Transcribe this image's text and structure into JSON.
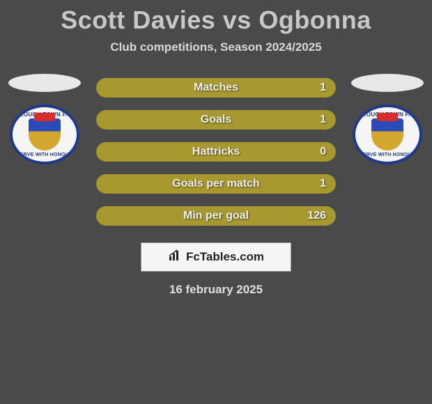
{
  "title": "Scott Davies vs Ogbonna",
  "subtitle": "Club competitions, Season 2024/2025",
  "left_player": {
    "club_top": "SLOUGH TOWN F.C.",
    "club_bottom": "SERVE WITH HONOUR"
  },
  "right_player": {
    "club_top": "SLOUGH TOWN F.C.",
    "club_bottom": "SERVE WITH HONOUR"
  },
  "stats": [
    {
      "label": "Matches",
      "value": "1",
      "left_color": "#a89830",
      "right_color": "#a89830",
      "left_pct": 50
    },
    {
      "label": "Goals",
      "value": "1",
      "left_color": "#a89830",
      "right_color": "#a89830",
      "left_pct": 50
    },
    {
      "label": "Hattricks",
      "value": "0",
      "left_color": "#a89830",
      "right_color": "#a89830",
      "left_pct": 50
    },
    {
      "label": "Goals per match",
      "value": "1",
      "left_color": "#a89830",
      "right_color": "#a89830",
      "left_pct": 50
    },
    {
      "label": "Min per goal",
      "value": "126",
      "left_color": "#a89830",
      "right_color": "#a89830",
      "left_pct": 50
    }
  ],
  "brand": "FcTables.com",
  "date": "16 february 2025",
  "colors": {
    "background": "#4a4a4a",
    "title": "#c8c8c8",
    "ellipse": "#e8e8e8",
    "stat_text": "#eeeeee"
  }
}
